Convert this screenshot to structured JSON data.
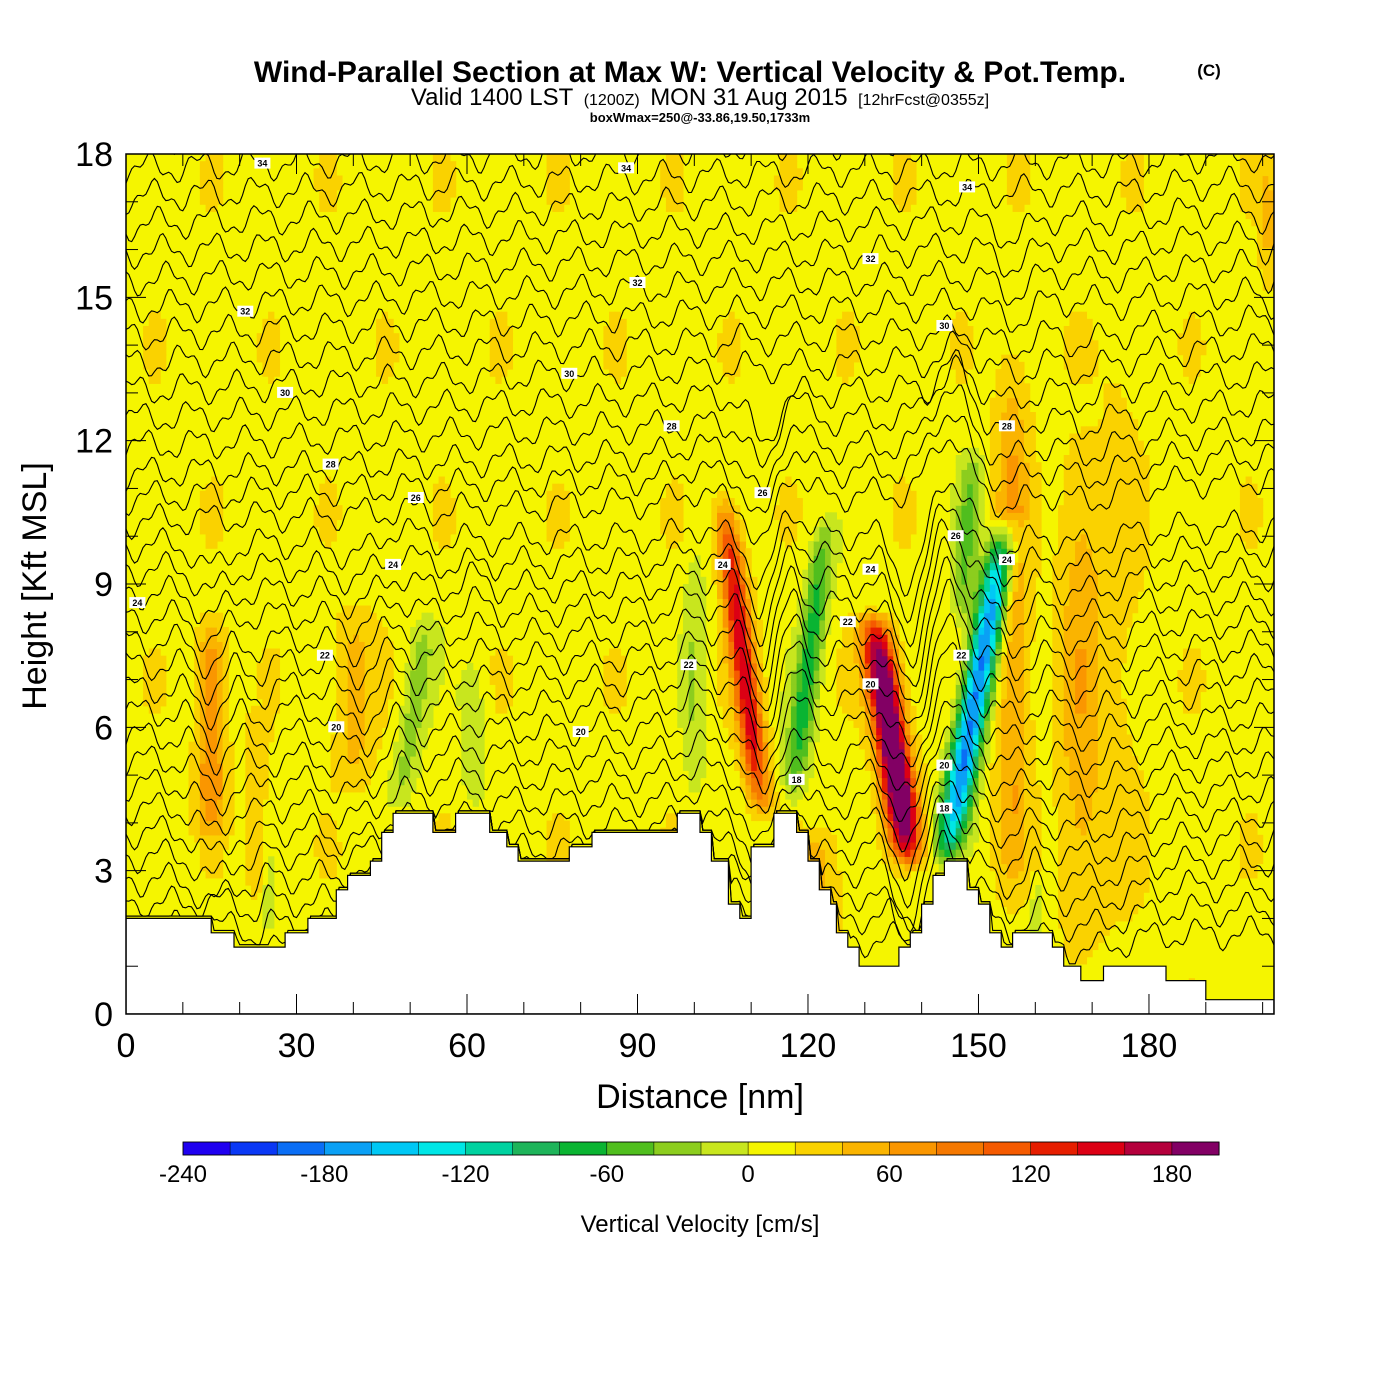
{
  "title": {
    "main": "Wind-Parallel Section at Max W: Vertical Velocity & Pot.Temp.",
    "copyright": "(C)",
    "valid_prefix": "Valid 1400 LST",
    "valid_utc": "(1200Z)",
    "valid_date": "MON 31 Aug 2015",
    "forecast": "[12hrFcst@0355z]",
    "boxwmax": "boxWmax=250@-33.86,19.50,1733m"
  },
  "chart_data": {
    "type": "heatmap",
    "xlabel": "Distance [nm]",
    "ylabel": "Height [Kft MSL]",
    "xlim": [
      0,
      202
    ],
    "ylim": [
      0,
      18
    ],
    "x_ticks": [
      "0",
      "30",
      "60",
      "90",
      "120",
      "150",
      "180"
    ],
    "y_ticks": [
      "0",
      "3",
      "6",
      "9",
      "12",
      "15",
      "18"
    ],
    "colorbar": {
      "title": "Vertical Velocity [cm/s]",
      "levels": [
        -240,
        -220,
        -200,
        -180,
        -160,
        -140,
        -120,
        -100,
        -80,
        -60,
        -40,
        -20,
        0,
        20,
        40,
        60,
        80,
        100,
        120,
        140,
        160,
        180,
        200
      ],
      "tick_labels": [
        "-240",
        "-180",
        "-120",
        "-60",
        "0",
        "60",
        "120",
        "180"
      ],
      "colors": [
        "#1f00f0",
        "#0a38f5",
        "#0a6ef5",
        "#0aa0f5",
        "#00c8f5",
        "#00e6e6",
        "#00d2a0",
        "#1eb45a",
        "#0ab432",
        "#50be1e",
        "#8ccd1e",
        "#c8e61e",
        "#f5f500",
        "#fad200",
        "#fab400",
        "#fa9600",
        "#f57800",
        "#f55a00",
        "#e61e00",
        "#dc0014",
        "#b4003c",
        "#820064"
      ]
    },
    "terrain": [
      [
        0,
        2
      ],
      [
        15,
        2
      ],
      [
        15,
        1.7
      ],
      [
        19,
        1.7
      ],
      [
        19,
        1.4
      ],
      [
        28,
        1.4
      ],
      [
        28,
        1.7
      ],
      [
        32,
        1.7
      ],
      [
        32,
        2
      ],
      [
        37,
        2
      ],
      [
        37,
        2.6
      ],
      [
        39,
        2.6
      ],
      [
        39,
        2.9
      ],
      [
        43,
        2.9
      ],
      [
        43,
        3.2
      ],
      [
        45,
        3.2
      ],
      [
        45,
        3.8
      ],
      [
        47,
        3.8
      ],
      [
        47,
        4.2
      ],
      [
        54,
        4.2
      ],
      [
        54,
        3.8
      ],
      [
        58,
        3.8
      ],
      [
        58,
        4.2
      ],
      [
        64,
        4.2
      ],
      [
        64,
        3.8
      ],
      [
        67,
        3.8
      ],
      [
        67,
        3.5
      ],
      [
        69,
        3.5
      ],
      [
        69,
        3.2
      ],
      [
        78,
        3.2
      ],
      [
        78,
        3.5
      ],
      [
        82,
        3.5
      ],
      [
        82,
        3.8
      ],
      [
        97,
        3.8
      ],
      [
        97,
        4.2
      ],
      [
        101,
        4.2
      ],
      [
        101,
        3.8
      ],
      [
        103,
        3.8
      ],
      [
        103,
        3.2
      ],
      [
        106,
        3.2
      ],
      [
        106,
        2.3
      ],
      [
        108,
        2.3
      ],
      [
        108,
        2
      ],
      [
        110,
        2
      ],
      [
        110,
        3.5
      ],
      [
        114,
        3.5
      ],
      [
        114,
        4.2
      ],
      [
        118,
        4.2
      ],
      [
        118,
        3.8
      ],
      [
        120,
        3.8
      ],
      [
        120,
        3.2
      ],
      [
        122,
        3.2
      ],
      [
        122,
        2.6
      ],
      [
        124,
        2.6
      ],
      [
        124,
        2.3
      ],
      [
        125,
        2.3
      ],
      [
        125,
        1.7
      ],
      [
        127,
        1.7
      ],
      [
        127,
        1.4
      ],
      [
        129,
        1.4
      ],
      [
        129,
        1.0
      ],
      [
        136,
        1.0
      ],
      [
        136,
        1.4
      ],
      [
        138,
        1.4
      ],
      [
        138,
        1.7
      ],
      [
        140,
        1.7
      ],
      [
        140,
        2.3
      ],
      [
        142,
        2.3
      ],
      [
        142,
        2.9
      ],
      [
        144,
        2.9
      ],
      [
        144,
        3.2
      ],
      [
        148,
        3.2
      ],
      [
        148,
        2.6
      ],
      [
        150,
        2.6
      ],
      [
        150,
        2.3
      ],
      [
        152,
        2.3
      ],
      [
        152,
        1.7
      ],
      [
        154,
        1.7
      ],
      [
        154,
        1.4
      ],
      [
        156,
        1.4
      ],
      [
        156,
        1.7
      ],
      [
        163,
        1.7
      ],
      [
        163,
        1.4
      ],
      [
        165,
        1.4
      ],
      [
        165,
        1.0
      ],
      [
        168,
        1.0
      ],
      [
        168,
        0.7
      ],
      [
        172,
        0.7
      ],
      [
        172,
        1.0
      ],
      [
        183,
        1.0
      ],
      [
        183,
        0.7
      ],
      [
        190,
        0.7
      ],
      [
        190,
        0.3
      ],
      [
        202,
        0.3
      ]
    ],
    "w_features": [
      {
        "x": 15,
        "ylo": 3.5,
        "yhi": 8.5,
        "w": 70,
        "width": 2.5,
        "tilt": 0
      },
      {
        "x": 23,
        "ylo": 2,
        "yhi": 6.5,
        "w": 25,
        "width": 2,
        "tilt": 0
      },
      {
        "x": 40,
        "ylo": 4.5,
        "yhi": 8.7,
        "w": 35,
        "width": 3.5,
        "tilt": 0
      },
      {
        "x": 48,
        "ylo": 4.2,
        "yhi": 8.5,
        "w": -40,
        "width": 2.5,
        "tilt": 1.2
      },
      {
        "x": 61,
        "ylo": 4.2,
        "yhi": 7.5,
        "w": -30,
        "width": 2,
        "tilt": 0
      },
      {
        "x": 25,
        "ylo": 1.6,
        "yhi": 3.5,
        "w": -20,
        "width": 1,
        "tilt": 0
      },
      {
        "x": 100,
        "ylo": 4.2,
        "yhi": 10,
        "w": -30,
        "width": 2,
        "tilt": 0
      },
      {
        "x": 112,
        "ylo": 4,
        "yhi": 11,
        "w": 140,
        "width": 2.2,
        "tilt": -1.0
      },
      {
        "x": 117,
        "ylo": 4.2,
        "yhi": 10.5,
        "w": -80,
        "width": 2.2,
        "tilt": 1.0
      },
      {
        "x": 138,
        "ylo": 3,
        "yhi": 8.5,
        "w": 230,
        "width": 2.8,
        "tilt": -1.2
      },
      {
        "x": 144,
        "ylo": 3,
        "yhi": 10.5,
        "w": -200,
        "width": 2.6,
        "tilt": 1.5
      },
      {
        "x": 147,
        "ylo": 8,
        "yhi": 12,
        "w": -50,
        "width": 2,
        "tilt": 0.5
      },
      {
        "x": 156,
        "ylo": 2,
        "yhi": 14.5,
        "w": 50,
        "width": 3,
        "tilt": 0
      },
      {
        "x": 168,
        "ylo": 1,
        "yhi": 12.5,
        "w": 40,
        "width": 4,
        "tilt": 0
      },
      {
        "x": 122,
        "ylo": 1.5,
        "yhi": 4,
        "w": 35,
        "width": 4,
        "tilt": 0
      },
      {
        "x": 160,
        "ylo": 1.5,
        "yhi": 3,
        "w": -25,
        "width": 1,
        "tilt": 0
      },
      {
        "x": 175,
        "ylo": 1,
        "yhi": 16,
        "w": 15,
        "width": 4,
        "tilt": 0
      },
      {
        "x": 201,
        "ylo": 15,
        "yhi": 18,
        "w": 30,
        "width": 1.5,
        "tilt": 0
      }
    ],
    "contour_labels": [
      {
        "x": 24,
        "y": 17.8,
        "text": "34"
      },
      {
        "x": 88,
        "y": 17.7,
        "text": "34"
      },
      {
        "x": 148,
        "y": 17.3,
        "text": "34"
      },
      {
        "x": 21,
        "y": 14.7,
        "text": "32"
      },
      {
        "x": 90,
        "y": 15.3,
        "text": "32"
      },
      {
        "x": 131,
        "y": 15.8,
        "text": "32"
      },
      {
        "x": 28,
        "y": 13.0,
        "text": "30"
      },
      {
        "x": 78,
        "y": 13.4,
        "text": "30"
      },
      {
        "x": 144,
        "y": 14.4,
        "text": "30"
      },
      {
        "x": 36,
        "y": 11.5,
        "text": "28"
      },
      {
        "x": 96,
        "y": 12.3,
        "text": "28"
      },
      {
        "x": 155,
        "y": 12.3,
        "text": "28"
      },
      {
        "x": 51,
        "y": 10.8,
        "text": "26"
      },
      {
        "x": 112,
        "y": 10.9,
        "text": "26"
      },
      {
        "x": 146,
        "y": 10.0,
        "text": "26"
      },
      {
        "x": 2,
        "y": 8.6,
        "text": "24"
      },
      {
        "x": 47,
        "y": 9.4,
        "text": "24"
      },
      {
        "x": 105,
        "y": 9.4,
        "text": "24"
      },
      {
        "x": 131,
        "y": 9.3,
        "text": "24"
      },
      {
        "x": 155,
        "y": 9.5,
        "text": "24"
      },
      {
        "x": 35,
        "y": 7.5,
        "text": "22"
      },
      {
        "x": 99,
        "y": 7.3,
        "text": "22"
      },
      {
        "x": 127,
        "y": 8.2,
        "text": "22"
      },
      {
        "x": 147,
        "y": 7.5,
        "text": "22"
      },
      {
        "x": 37,
        "y": 6.0,
        "text": "20"
      },
      {
        "x": 80,
        "y": 5.9,
        "text": "20"
      },
      {
        "x": 131,
        "y": 6.9,
        "text": "20"
      },
      {
        "x": 144,
        "y": 5.2,
        "text": "20"
      },
      {
        "x": 118,
        "y": 4.9,
        "text": "18"
      },
      {
        "x": 144,
        "y": 4.3,
        "text": "18"
      }
    ]
  }
}
